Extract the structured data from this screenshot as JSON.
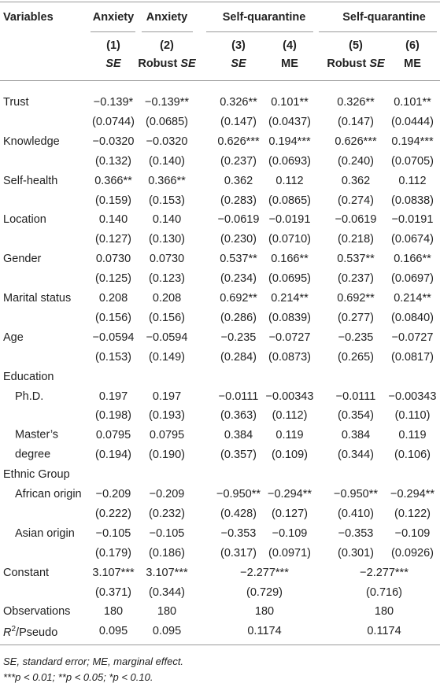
{
  "table": {
    "header": {
      "variables": "Variables",
      "groups": [
        {
          "label": "Anxiety",
          "cols": [
            0
          ]
        },
        {
          "label": "Anxiety",
          "cols": [
            1
          ]
        },
        {
          "label": "Self-quarantine",
          "cols": [
            2,
            3
          ]
        },
        {
          "label": "Self-quarantine",
          "cols": [
            4,
            5
          ]
        }
      ],
      "columns": [
        {
          "number": "(1)",
          "label": "SE",
          "italic": true
        },
        {
          "number": "(2)",
          "prefix": "Robust",
          "label": "SE",
          "italic": true
        },
        {
          "number": "(3)",
          "label": "SE",
          "italic": true
        },
        {
          "number": "(4)",
          "label": "ME",
          "italic": false
        },
        {
          "number": "(5)",
          "prefix": "Robust",
          "label": "SE",
          "italic": true
        },
        {
          "number": "(6)",
          "label": "ME",
          "italic": false
        }
      ]
    },
    "rows": [
      {
        "label": "Trust",
        "values": [
          "−0.139*",
          "−0.139**",
          "0.326**",
          "0.101**",
          "0.326**",
          "0.101**"
        ],
        "se": [
          "(0.0744)",
          "(0.0685)",
          "(0.147)",
          "(0.0437)",
          "(0.147)",
          "(0.0444)"
        ]
      },
      {
        "label": "Knowledge",
        "values": [
          "−0.0320",
          "−0.0320",
          "0.626***",
          "0.194***",
          "0.626***",
          "0.194***"
        ],
        "se": [
          "(0.132)",
          "(0.140)",
          "(0.237)",
          "(0.0693)",
          "(0.240)",
          "(0.0705)"
        ]
      },
      {
        "label": "Self-health",
        "values": [
          "0.366**",
          "0.366**",
          "0.362",
          "0.112",
          "0.362",
          "0.112"
        ],
        "se": [
          "(0.159)",
          "(0.153)",
          "(0.283)",
          "(0.0865)",
          "(0.274)",
          "(0.0838)"
        ]
      },
      {
        "label": "Location",
        "values": [
          "0.140",
          "0.140",
          "−0.0619",
          "−0.0191",
          "−0.0619",
          "−0.0191"
        ],
        "se": [
          "(0.127)",
          "(0.130)",
          "(0.230)",
          "(0.0710)",
          "(0.218)",
          "(0.0674)"
        ]
      },
      {
        "label": "Gender",
        "values": [
          "0.0730",
          "0.0730",
          "0.537**",
          "0.166**",
          "0.537**",
          "0.166**"
        ],
        "se": [
          "(0.125)",
          "(0.123)",
          "(0.234)",
          "(0.0695)",
          "(0.237)",
          "(0.0697)"
        ]
      },
      {
        "label": "Marital status",
        "values": [
          "0.208",
          "0.208",
          "0.692**",
          "0.214**",
          "0.692**",
          "0.214**"
        ],
        "se": [
          "(0.156)",
          "(0.156)",
          "(0.286)",
          "(0.0839)",
          "(0.277)",
          "(0.0840)"
        ]
      },
      {
        "label": "Age",
        "values": [
          "−0.0594",
          "−0.0594",
          "−0.235",
          "−0.0727",
          "−0.235",
          "−0.0727"
        ],
        "se": [
          "(0.153)",
          "(0.149)",
          "(0.284)",
          "(0.0873)",
          "(0.265)",
          "(0.0817)"
        ]
      },
      {
        "label": "Education"
      },
      {
        "label": "Ph.D.",
        "indent": true,
        "values": [
          "0.197",
          "0.197",
          "−0.0111",
          "−0.00343",
          "−0.0111",
          "−0.00343"
        ],
        "se": [
          "(0.198)",
          "(0.193)",
          "(0.363)",
          "(0.112)",
          "(0.354)",
          "(0.110)"
        ]
      },
      {
        "label": "Master’s degree",
        "indent": true,
        "values": [
          "0.0795",
          "0.0795",
          "0.384",
          "0.119",
          "0.384",
          "0.119"
        ],
        "se": [
          "(0.194)",
          "(0.190)",
          "(0.357)",
          "(0.109)",
          "(0.344)",
          "(0.106)"
        ]
      },
      {
        "label": "Ethnic Group"
      },
      {
        "label": "African origin",
        "indent": true,
        "values": [
          "−0.209",
          "−0.209",
          "−0.950**",
          "−0.294**",
          "−0.950**",
          "−0.294**"
        ],
        "se": [
          "(0.222)",
          "(0.232)",
          "(0.428)",
          "(0.127)",
          "(0.410)",
          "(0.122)"
        ]
      },
      {
        "label": "Asian origin",
        "indent": true,
        "values": [
          "−0.105",
          "−0.105",
          "−0.353",
          "−0.109",
          "−0.353",
          "−0.109"
        ],
        "se": [
          "(0.179)",
          "(0.186)",
          "(0.317)",
          "(0.0971)",
          "(0.301)",
          "(0.0926)"
        ]
      },
      {
        "label": "Constant",
        "merged": true,
        "values": [
          "3.107***",
          "3.107***",
          "−2.277***",
          "−2.277***"
        ],
        "se": [
          "(0.371)",
          "(0.344)",
          "(0.729)",
          "(0.716)"
        ]
      },
      {
        "label": "Observations",
        "merged": true,
        "values": [
          "180",
          "180",
          "180",
          "180"
        ]
      },
      {
        "label_parts": [
          "R",
          "2",
          "/Pseudo"
        ],
        "merged": true,
        "values": [
          "0.095",
          "0.095",
          "0.1174",
          "0.1174"
        ]
      }
    ],
    "footnotes": [
      "SE, standard error; ME, marginal effect.",
      "***p < 0.01; **p < 0.05; *p < 0.10."
    ]
  }
}
